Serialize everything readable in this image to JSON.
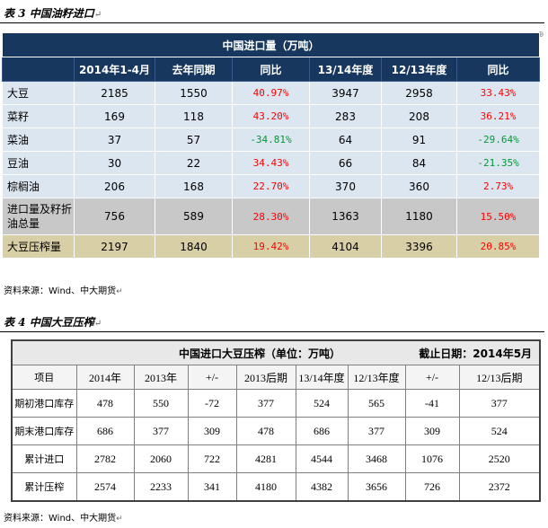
{
  "table3": {
    "caption": "表 3 中国油籽进口",
    "band_title": "中国进口量（万吨）",
    "headers": [
      "",
      "2014年1-4月",
      "去年同期",
      "同比",
      "13/14年度",
      "12/13年度",
      "同比"
    ],
    "rows": [
      {
        "label": "大豆",
        "c1": "2185",
        "c2": "1550",
        "c3": "40.97%",
        "c4": "3947",
        "c5": "2958",
        "c6": "33.43%"
      },
      {
        "label": "菜籽",
        "c1": "169",
        "c2": "118",
        "c3": "43.20%",
        "c4": "283",
        "c5": "208",
        "c6": "36.21%"
      },
      {
        "label": "菜油",
        "c1": "37",
        "c2": "57",
        "c3": "-34.81%",
        "c4": "64",
        "c5": "91",
        "c6": "-29.64%"
      },
      {
        "label": "豆油",
        "c1": "30",
        "c2": "22",
        "c3": "34.43%",
        "c4": "66",
        "c5": "84",
        "c6": "-21.35%"
      },
      {
        "label": "棕榈油",
        "c1": "206",
        "c2": "168",
        "c3": "22.70%",
        "c4": "370",
        "c5": "360",
        "c6": "2.73%"
      },
      {
        "label": "进口量及籽折油总量",
        "c1": "756",
        "c2": "589",
        "c3": "28.30%",
        "c4": "1363",
        "c5": "1180",
        "c6": "15.50%"
      },
      {
        "label": "大豆压榨量",
        "c1": "2197",
        "c2": "1840",
        "c3": "19.42%",
        "c4": "4104",
        "c5": "3396",
        "c6": "20.85%"
      }
    ],
    "source": "资料来源：Wind、中大期货"
  },
  "table4": {
    "caption": "表 4 中国大豆压榨",
    "title": "中国进口大豆压榨（单位：万吨）",
    "deadline": "截止日期：2014年5月",
    "headers": [
      "项目",
      "2014年",
      "2013年",
      "+/-",
      "2013后期",
      "13/14年度",
      "12/13年度",
      "+/-",
      "12/13后期"
    ],
    "rows": [
      {
        "label": "期初港口库存",
        "v": [
          "478",
          "550",
          "-72",
          "377",
          "524",
          "565",
          "-41",
          "377"
        ]
      },
      {
        "label": "期末港口库存",
        "v": [
          "686",
          "377",
          "309",
          "478",
          "686",
          "377",
          "309",
          "524"
        ]
      },
      {
        "label": "累计进口",
        "v": [
          "2782",
          "2060",
          "722",
          "4281",
          "4544",
          "3468",
          "1076",
          "2520"
        ]
      },
      {
        "label": "累计压榨",
        "v": [
          "2574",
          "2233",
          "341",
          "4180",
          "4382",
          "3656",
          "726",
          "2372"
        ]
      }
    ],
    "source": "资料来源：Wind、中大期货"
  },
  "colors": {
    "band": "#17375e",
    "cell": "#dce6f1",
    "positive": "#ff0000",
    "negative": "#009933",
    "gray_row": "#c8c8c8",
    "tan_row": "#d9cfa6"
  },
  "marks": {
    "paragraph": "↵"
  }
}
